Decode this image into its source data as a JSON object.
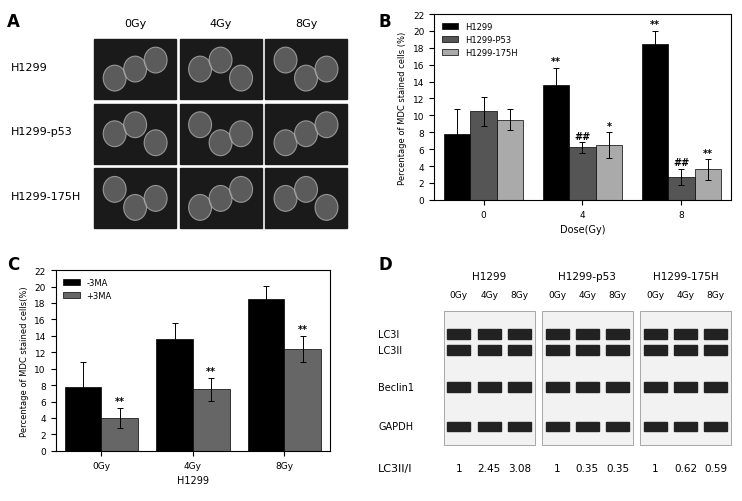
{
  "chart_data": [
    {
      "type": "bar",
      "panel_label": "B",
      "categories": [
        "0",
        "4",
        "8"
      ],
      "x_label": "Dose(Gy)",
      "y_label": "Percentage of MDC stained cells (%)",
      "ylim": [
        0,
        22
      ],
      "yticks": [
        0,
        2,
        4,
        6,
        8,
        10,
        12,
        14,
        16,
        18,
        20,
        22
      ],
      "legend": "upper left",
      "series": [
        {
          "name": "H1299",
          "color": "#000000",
          "values": [
            7.8,
            13.6,
            18.5
          ],
          "errors": [
            3.0,
            2.0,
            1.5
          ],
          "annotations": [
            null,
            "**",
            "**"
          ]
        },
        {
          "name": "H1299-P53",
          "color": "#555555",
          "values": [
            10.5,
            6.2,
            2.7
          ],
          "errors": [
            1.7,
            0.6,
            1.0
          ],
          "annotations": [
            null,
            "##",
            "##"
          ]
        },
        {
          "name": "H1299-175H",
          "color": "#aaaaaa",
          "values": [
            9.5,
            6.5,
            3.6
          ],
          "errors": [
            1.2,
            1.5,
            1.2
          ],
          "annotations": [
            null,
            "*",
            "**"
          ]
        }
      ]
    },
    {
      "type": "bar",
      "panel_label": "C",
      "categories": [
        "0Gy",
        "4Gy",
        "8Gy"
      ],
      "x_label": "H1299",
      "y_label": "Percentage of MDC stained cells(%)",
      "ylim": [
        0,
        22
      ],
      "yticks": [
        0,
        2,
        4,
        6,
        8,
        10,
        12,
        14,
        16,
        18,
        20,
        22
      ],
      "legend": "upper left",
      "series": [
        {
          "name": "-3MA",
          "color": "#000000",
          "values": [
            7.8,
            13.6,
            18.5
          ],
          "errors": [
            3.0,
            2.0,
            1.6
          ],
          "annotations": [
            null,
            null,
            null
          ]
        },
        {
          "name": "+3MA",
          "color": "#666666",
          "values": [
            4.0,
            7.5,
            12.4
          ],
          "errors": [
            1.2,
            1.4,
            1.6
          ],
          "annotations": [
            "**",
            "**",
            "**"
          ]
        }
      ]
    }
  ],
  "microscopy": {
    "panel_label": "A",
    "columns": [
      "0Gy",
      "4Gy",
      "8Gy"
    ],
    "rows": [
      "H1299",
      "H1299-p53",
      "H1299-175H"
    ]
  },
  "western_blot": {
    "panel_label": "D",
    "bands": [
      "LC3I",
      "LC3II",
      "Beclin1",
      "GAPDH"
    ],
    "ratio_label": "LC3II/I",
    "groups": [
      {
        "name": "H1299",
        "lanes": [
          "0Gy",
          "4Gy",
          "8Gy"
        ],
        "ratios": [
          1,
          2.45,
          3.08
        ]
      },
      {
        "name": "H1299-p53",
        "lanes": [
          "0Gy",
          "4Gy",
          "8Gy"
        ],
        "ratios": [
          1,
          0.35,
          0.35
        ]
      },
      {
        "name": "H1299-175H",
        "lanes": [
          "0Gy",
          "4Gy",
          "8Gy"
        ],
        "ratios": [
          1,
          0.62,
          0.59
        ]
      }
    ]
  }
}
